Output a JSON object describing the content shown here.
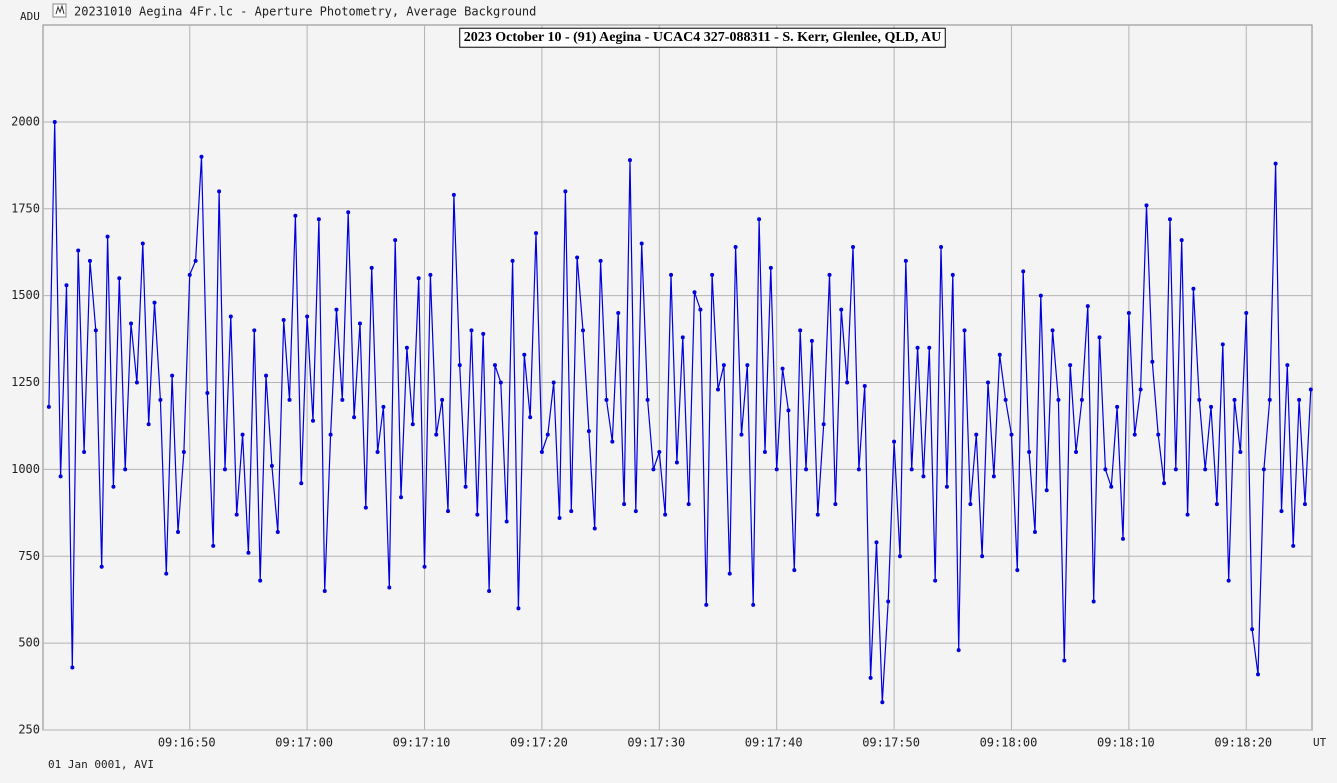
{
  "window_title": "20231010 Aegina 4Fr.lc - Aperture Photometry, Average Background",
  "footer": "01 Jan 0001, AVI",
  "chart_data": {
    "type": "line",
    "title": "2023 October 10 - (91) Aegina - UCAC4 327-088311 - S. Kerr, Glenlee, QLD, AU",
    "y_label": "ADU",
    "x_label": "UT",
    "grid": true,
    "markers": true,
    "xlim": [
      33397.5,
      33505.6
    ],
    "ylim": [
      250,
      2279
    ],
    "yticks": [
      250,
      500,
      750,
      1000,
      1250,
      1500,
      1750,
      2000
    ],
    "xticks": [
      {
        "value": 33410,
        "label": "09:16:50"
      },
      {
        "value": 33420,
        "label": "09:17:00"
      },
      {
        "value": 33430,
        "label": "09:17:10"
      },
      {
        "value": 33440,
        "label": "09:17:20"
      },
      {
        "value": 33450,
        "label": "09:17:30"
      },
      {
        "value": 33460,
        "label": "09:17:40"
      },
      {
        "value": 33470,
        "label": "09:17:50"
      },
      {
        "value": 33480,
        "label": "09:18:00"
      },
      {
        "value": 33490,
        "label": "09:18:10"
      },
      {
        "value": 33500,
        "label": "09:18:20"
      }
    ],
    "x": [
      33398,
      33398.5,
      33399,
      33399.5,
      33400,
      33400.5,
      33401,
      33401.5,
      33402,
      33402.5,
      33403,
      33403.5,
      33404,
      33404.5,
      33405,
      33405.5,
      33406,
      33406.5,
      33407,
      33407.5,
      33408,
      33408.5,
      33409,
      33409.5,
      33410,
      33410.5,
      33411,
      33411.5,
      33412,
      33412.5,
      33413,
      33413.5,
      33414,
      33414.5,
      33415,
      33415.5,
      33416,
      33416.5,
      33417,
      33417.5,
      33418,
      33418.5,
      33419,
      33419.5,
      33420,
      33420.5,
      33421,
      33421.5,
      33422,
      33422.5,
      33423,
      33423.5,
      33424,
      33424.5,
      33425,
      33425.5,
      33426,
      33426.5,
      33427,
      33427.5,
      33428,
      33428.5,
      33429,
      33429.5,
      33430,
      33430.5,
      33431,
      33431.5,
      33432,
      33432.5,
      33433,
      33433.5,
      33434,
      33434.5,
      33435,
      33435.5,
      33436,
      33436.5,
      33437,
      33437.5,
      33438,
      33438.5,
      33439,
      33439.5,
      33440,
      33440.5,
      33441,
      33441.5,
      33442,
      33442.5,
      33443,
      33443.5,
      33444,
      33444.5,
      33445,
      33445.5,
      33446,
      33446.5,
      33447,
      33447.5,
      33448,
      33448.5,
      33449,
      33449.5,
      33450,
      33450.5,
      33451,
      33451.5,
      33452,
      33452.5,
      33453,
      33453.5,
      33454,
      33454.5,
      33455,
      33455.5,
      33456,
      33456.5,
      33457,
      33457.5,
      33458,
      33458.5,
      33459,
      33459.5,
      33460,
      33460.5,
      33461,
      33461.5,
      33462,
      33462.5,
      33463,
      33463.5,
      33464,
      33464.5,
      33465,
      33465.5,
      33466,
      33466.5,
      33467,
      33467.5,
      33468,
      33468.5,
      33469,
      33469.5,
      33470,
      33470.5,
      33471,
      33471.5,
      33472,
      33472.5,
      33473,
      33473.5,
      33474,
      33474.5,
      33475,
      33475.5,
      33476,
      33476.5,
      33477,
      33477.5,
      33478,
      33478.5,
      33479,
      33479.5,
      33480,
      33480.5,
      33481,
      33481.5,
      33482,
      33482.5,
      33483,
      33483.5,
      33484,
      33484.5,
      33485,
      33485.5,
      33486,
      33486.5,
      33487,
      33487.5,
      33488,
      33488.5,
      33489,
      33489.5,
      33490,
      33490.5,
      33491,
      33491.5,
      33492,
      33492.5,
      33493,
      33493.5,
      33494,
      33494.5,
      33495,
      33495.5,
      33496,
      33496.5,
      33497,
      33497.5,
      33498,
      33498.5,
      33499,
      33499.5,
      33500,
      33500.5,
      33501,
      33501.5,
      33502,
      33502.5,
      33503,
      33503.5,
      33504,
      33504.5,
      33505,
      33505.5
    ],
    "series": [
      {
        "color": "#0000dd",
        "values": [
          1180,
          2000,
          980,
          1530,
          430,
          1630,
          1050,
          1600,
          1400,
          720,
          1670,
          950,
          1550,
          1000,
          1420,
          1250,
          1650,
          1130,
          1480,
          1200,
          700,
          1270,
          820,
          1050,
          1560,
          1600,
          1900,
          1220,
          780,
          1800,
          1000,
          1440,
          870,
          1100,
          760,
          1400,
          680,
          1270,
          1010,
          820,
          1430,
          1200,
          1730,
          960,
          1440,
          1140,
          1720,
          650,
          1100,
          1460,
          1200,
          1740,
          1150,
          1420,
          890,
          1580,
          1050,
          1180,
          660,
          1660,
          920,
          1350,
          1130,
          1550,
          720,
          1560,
          1100,
          1200,
          880,
          1790,
          1300,
          950,
          1400,
          870,
          1390,
          650,
          1300,
          1250,
          850,
          1600,
          600,
          1330,
          1150,
          1680,
          1050,
          1100,
          1250,
          860,
          1800,
          880,
          1610,
          1400,
          1110,
          830,
          1600,
          1200,
          1080,
          1450,
          900,
          1890,
          880,
          1650,
          1200,
          1000,
          1050,
          870,
          1560,
          1020,
          1380,
          900,
          1510,
          1460,
          610,
          1560,
          1230,
          1300,
          700,
          1640,
          1100,
          1300,
          610,
          1720,
          1050,
          1580,
          1000,
          1290,
          1170,
          710,
          1400,
          1000,
          1370,
          870,
          1130,
          1560,
          900,
          1460,
          1250,
          1640,
          1000,
          1240,
          400,
          790,
          330,
          620,
          1080,
          750,
          1600,
          1000,
          1350,
          980,
          1350,
          680,
          1640,
          950,
          1560,
          480,
          1400,
          900,
          1100,
          750,
          1250,
          980,
          1330,
          1200,
          1100,
          710,
          1570,
          1050,
          820,
          1500,
          940,
          1400,
          1200,
          450,
          1300,
          1050,
          1200,
          1470,
          620,
          1380,
          1000,
          950,
          1180,
          800,
          1450,
          1100,
          1230,
          1760,
          1310,
          1100,
          960,
          1720,
          1000,
          1660,
          870,
          1520,
          1200,
          1000,
          1180,
          900,
          1360,
          680,
          1200,
          1050,
          1450,
          540,
          410,
          1000,
          1200,
          1880,
          880,
          1300,
          780,
          1200,
          900,
          1230
        ]
      }
    ]
  }
}
